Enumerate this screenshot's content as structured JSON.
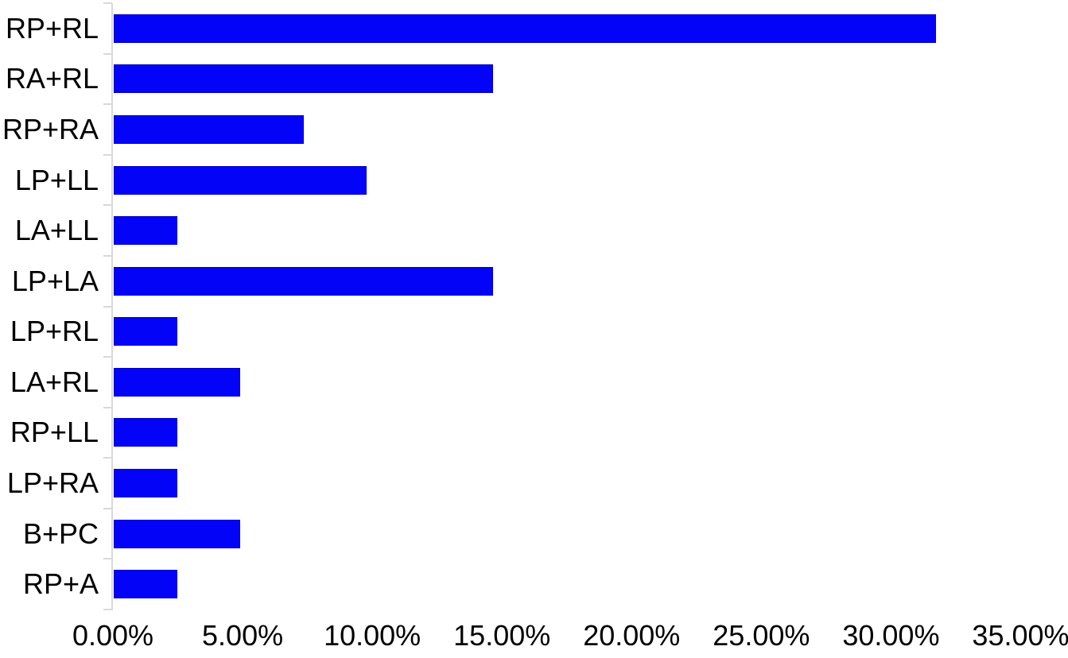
{
  "chart_data": {
    "type": "bar",
    "orientation": "horizontal",
    "title": "",
    "xlabel": "",
    "ylabel": "",
    "categories": [
      "RP+RL",
      "RA+RL",
      "RP+RA",
      "LP+LL",
      "LA+LL",
      "LP+LA",
      "LP+RL",
      "LA+RL",
      "RP+LL",
      "LP+RA",
      "B+PC",
      "RP+A"
    ],
    "values": [
      31.71,
      14.63,
      7.32,
      9.76,
      2.44,
      14.63,
      2.44,
      4.88,
      2.44,
      2.44,
      4.88,
      2.44
    ],
    "value_unit": "%",
    "xlim": [
      0,
      35
    ],
    "x_ticks": [
      "0.00%",
      "5.00%",
      "10.00%",
      "15.00%",
      "20.00%",
      "25.00%",
      "30.00%",
      "35.00%"
    ],
    "x_tick_values": [
      0,
      5,
      10,
      15,
      20,
      25,
      30,
      35
    ],
    "grid": false,
    "legend": false,
    "bar_color": "#0303f8",
    "bar_border_color": "#0000cd",
    "axis_color": "#d9d9d9",
    "text_color": "#000000",
    "background_color": "#ffffff"
  }
}
